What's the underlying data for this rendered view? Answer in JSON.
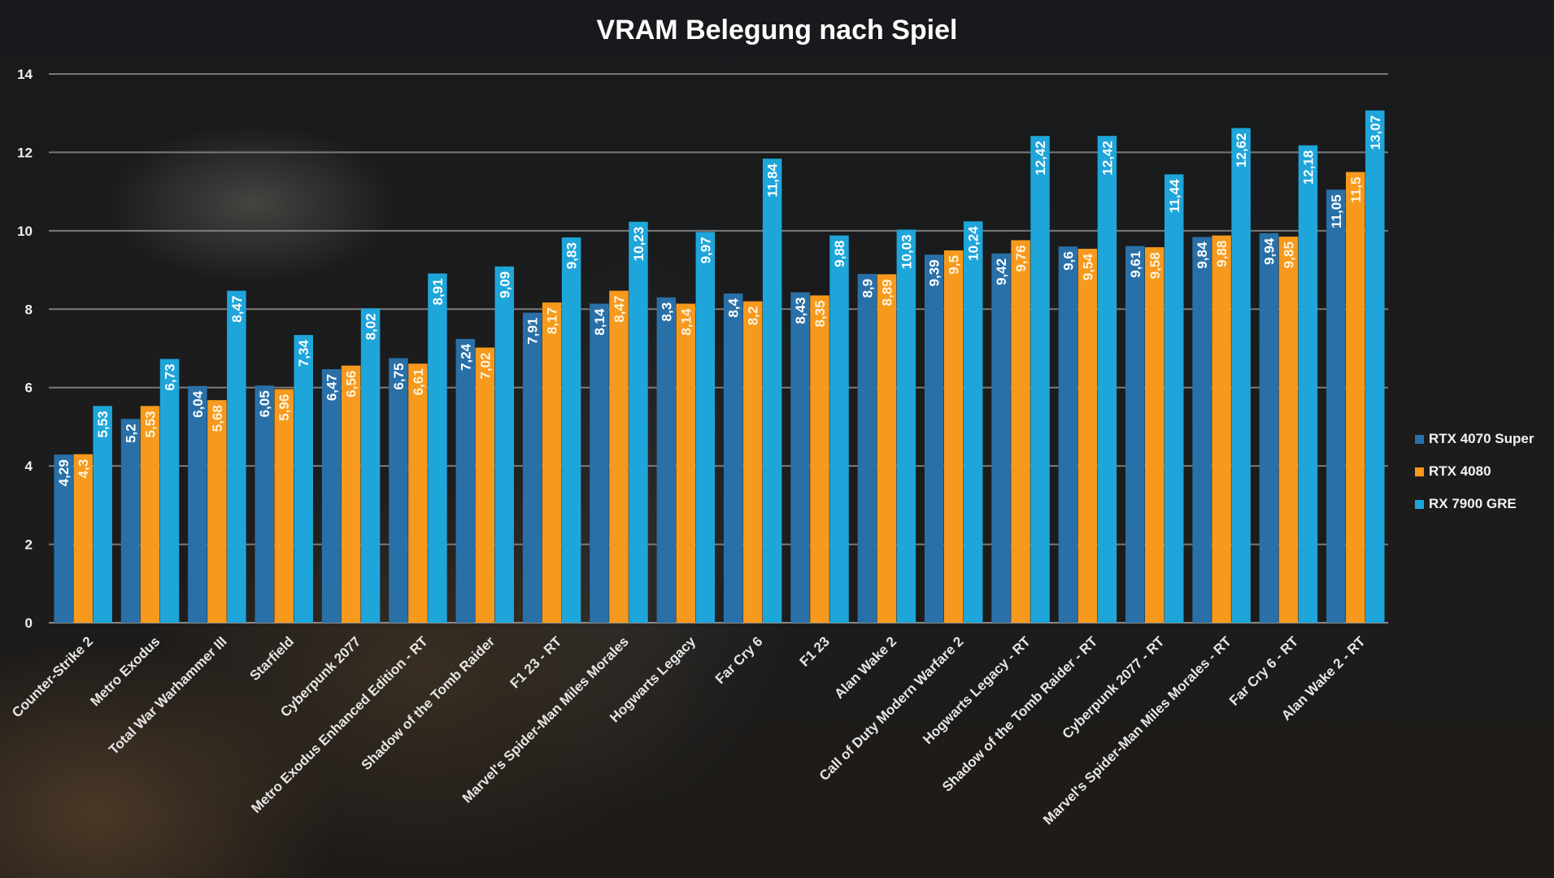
{
  "chart_data": {
    "type": "bar",
    "title": "VRAM Belegung nach Spiel",
    "xlabel": "",
    "ylabel": "",
    "ylim": [
      0,
      14
    ],
    "yticks": [
      0,
      2,
      4,
      6,
      8,
      10,
      12,
      14
    ],
    "ytick_labels": [
      "0",
      "2",
      "4",
      "6",
      "8",
      "10",
      "12",
      "14"
    ],
    "grid": true,
    "legend_position": "right",
    "decimal_separator": ",",
    "categories": [
      "Counter-Strike 2",
      "Metro Exodus",
      "Total War Warhammer III",
      "Starfield",
      "Cyberpunk 2077",
      "Metro Exodus Enhanced Edition - RT",
      "Shadow of the Tomb Raider",
      "F1 23 - RT",
      "Marvel's Spider-Man Miles Morales",
      "Hogwarts Legacy",
      "Far Cry 6",
      "F1 23",
      "Alan Wake 2",
      "Call of Duty Modern Warfare 2",
      "Hogwarts Legacy - RT",
      "Shadow of the Tomb Raider - RT",
      "Cyberpunk 2077 - RT",
      "Marvel's Spider-Man Miles Morales - RT",
      "Far Cry 6 - RT",
      "Alan Wake 2 - RT"
    ],
    "series": [
      {
        "name": "RTX 4070 Super",
        "color": "#2970a8",
        "values": [
          4.29,
          5.2,
          6.04,
          6.05,
          6.47,
          6.75,
          7.24,
          7.91,
          8.14,
          8.3,
          8.4,
          8.43,
          8.9,
          9.39,
          9.42,
          9.6,
          9.61,
          9.84,
          9.94,
          11.05
        ]
      },
      {
        "name": "RTX 4080",
        "color": "#f7991c",
        "values": [
          4.3,
          5.53,
          5.68,
          5.96,
          6.56,
          6.61,
          7.02,
          8.17,
          8.47,
          8.14,
          8.2,
          8.35,
          8.89,
          9.5,
          9.76,
          9.54,
          9.58,
          9.88,
          9.85,
          11.5
        ]
      },
      {
        "name": "RX 7900 GRE",
        "color": "#1ea5da",
        "values": [
          5.53,
          6.73,
          8.47,
          7.34,
          8.02,
          8.91,
          9.09,
          9.83,
          10.23,
          9.97,
          11.84,
          9.88,
          10.03,
          10.24,
          12.42,
          12.42,
          11.44,
          12.62,
          12.18,
          13.07
        ]
      }
    ]
  }
}
